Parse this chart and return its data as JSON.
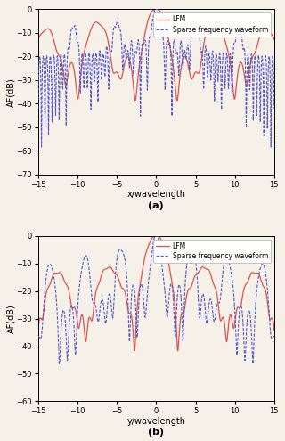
{
  "title_a": "(a)",
  "title_b": "(b)",
  "xlabel_a": "x/wavelength",
  "xlabel_b": "y/wavelength",
  "ylabel": "AF(dB)",
  "xlim": [
    -15,
    15
  ],
  "ylim_a": [
    -70,
    0
  ],
  "ylim_b": [
    -60,
    0
  ],
  "yticks_a": [
    0,
    -10,
    -20,
    -30,
    -40,
    -50,
    -60,
    -70
  ],
  "yticks_b": [
    0,
    -10,
    -20,
    -30,
    -40,
    -50,
    -60
  ],
  "xticks": [
    -15,
    -10,
    -5,
    0,
    5,
    10,
    15
  ],
  "lfm_color": "#d9534f",
  "sparse_color": "#5555cc",
  "legend_lfm": "LFM",
  "legend_sparse": "Sparse frequency waveform",
  "bg_color": "#f5f0e8",
  "figsize": [
    3.2,
    4.95
  ],
  "dpi": 100
}
